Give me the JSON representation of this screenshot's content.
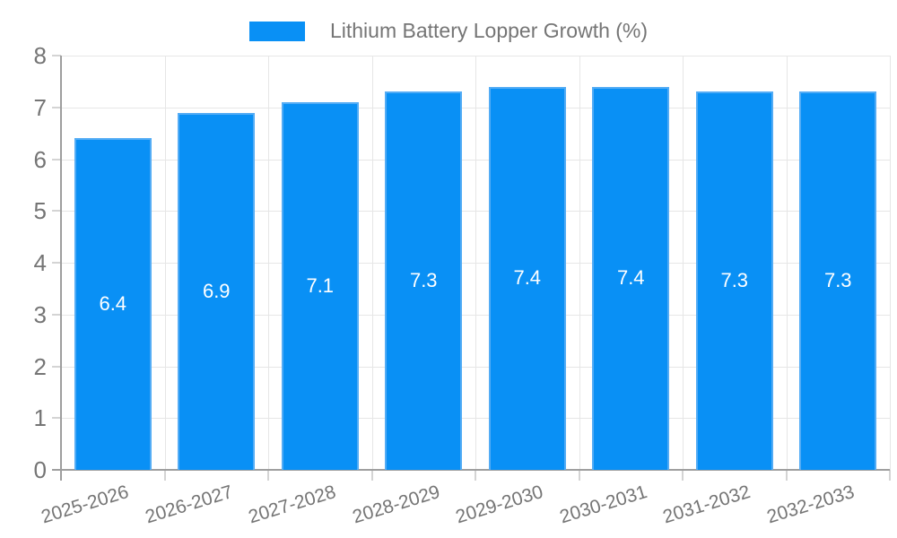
{
  "legend": {
    "label": "Lithium Battery Lopper Growth (%)"
  },
  "chart_data": {
    "type": "bar",
    "title": "Lithium Battery Lopper Growth (%)",
    "categories": [
      "2025-2026",
      "2026-2027",
      "2027-2028",
      "2028-2029",
      "2029-2030",
      "2030-2031",
      "2031-2032",
      "2032-2033"
    ],
    "values": [
      6.4,
      6.9,
      7.1,
      7.3,
      7.4,
      7.4,
      7.3,
      7.3
    ],
    "xlabel": "",
    "ylabel": "",
    "ylim": [
      0,
      8
    ],
    "yticks": [
      0,
      1,
      2,
      3,
      4,
      5,
      6,
      7,
      8
    ],
    "grid": true,
    "legend_position": "top",
    "colors": {
      "bar_fill": "#0990f5",
      "bar_border": "#53acf5",
      "bar_label": "#ffffff",
      "gridline": "#e6e6e6",
      "axis_line": "#9e9e9e",
      "tick_mark": "#d4d4d4",
      "axis_text": "#757575",
      "background": "#ffffff"
    }
  }
}
